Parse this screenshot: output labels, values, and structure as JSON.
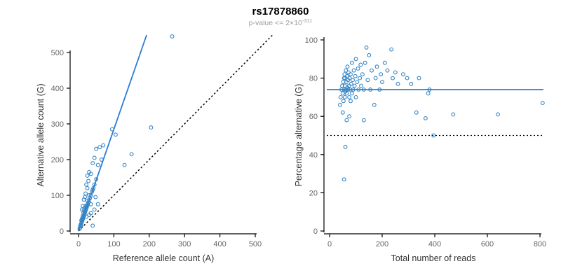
{
  "title": "rs17878860",
  "subtitle": {
    "prefix": "p-value <= 2",
    "times": "×",
    "base": "10",
    "exponent": "-311"
  },
  "colors": {
    "accent_line": "#2b7cd6",
    "point_stroke": "#3585c5",
    "dotted_line": "#000000",
    "axis_line": "#000000",
    "tick_text": "#666666",
    "axis_text": "#333333"
  },
  "chart_data": [
    {
      "type": "scatter",
      "xlabel": "Reference allele count (A)",
      "ylabel": "Alternative allele count (G)",
      "xlim": [
        0,
        500
      ],
      "ylim": [
        0,
        500
      ],
      "xticks": [
        0,
        100,
        200,
        300,
        400,
        500
      ],
      "yticks": [
        0,
        100,
        200,
        300,
        400,
        500
      ],
      "grid": false,
      "fit_line": {
        "slope": 2.85,
        "intercept": 0
      },
      "identity_line": {
        "slope": 1,
        "intercept": 0,
        "style": "dotted"
      },
      "points": [
        [
          3,
          6
        ],
        [
          4,
          10
        ],
        [
          5,
          14
        ],
        [
          6,
          18
        ],
        [
          7,
          15
        ],
        [
          8,
          22
        ],
        [
          8,
          30
        ],
        [
          9,
          25
        ],
        [
          10,
          28
        ],
        [
          10,
          35
        ],
        [
          11,
          30
        ],
        [
          12,
          34
        ],
        [
          12,
          42
        ],
        [
          13,
          36
        ],
        [
          14,
          40
        ],
        [
          14,
          50
        ],
        [
          15,
          42
        ],
        [
          15,
          58
        ],
        [
          16,
          45
        ],
        [
          17,
          48
        ],
        [
          18,
          52
        ],
        [
          18,
          65
        ],
        [
          19,
          55
        ],
        [
          20,
          58
        ],
        [
          20,
          70
        ],
        [
          21,
          60
        ],
        [
          22,
          40
        ],
        [
          22,
          63
        ],
        [
          23,
          66
        ],
        [
          24,
          70
        ],
        [
          25,
          72
        ],
        [
          25,
          85
        ],
        [
          26,
          75
        ],
        [
          28,
          80
        ],
        [
          30,
          45
        ],
        [
          30,
          86
        ],
        [
          30,
          100
        ],
        [
          32,
          92
        ],
        [
          35,
          50
        ],
        [
          35,
          75
        ],
        [
          35,
          100
        ],
        [
          38,
          110
        ],
        [
          40,
          15
        ],
        [
          40,
          115
        ],
        [
          42,
          120
        ],
        [
          45,
          60
        ],
        [
          45,
          130
        ],
        [
          48,
          95
        ],
        [
          50,
          145
        ],
        [
          55,
          75
        ],
        [
          10,
          60
        ],
        [
          12,
          70
        ],
        [
          15,
          88
        ],
        [
          18,
          95
        ],
        [
          20,
          105
        ],
        [
          22,
          130
        ],
        [
          25,
          120
        ],
        [
          25,
          155
        ],
        [
          28,
          140
        ],
        [
          30,
          165
        ],
        [
          35,
          160
        ],
        [
          40,
          190
        ],
        [
          45,
          205
        ],
        [
          50,
          230
        ],
        [
          55,
          185
        ],
        [
          60,
          235
        ],
        [
          65,
          200
        ],
        [
          70,
          240
        ],
        [
          95,
          285
        ],
        [
          105,
          270
        ],
        [
          130,
          185
        ],
        [
          150,
          215
        ],
        [
          205,
          290
        ],
        [
          265,
          545
        ]
      ]
    },
    {
      "type": "scatter",
      "xlabel": "Total number of reads",
      "ylabel": "Percentage alternative (G)",
      "xlim": [
        0,
        800
      ],
      "ylim": [
        0,
        100
      ],
      "xticks": [
        0,
        200,
        400,
        600,
        800
      ],
      "yticks": [
        0,
        20,
        40,
        60,
        80,
        100
      ],
      "grid": false,
      "hline_blue": 74,
      "hline_dotted": 50,
      "points": [
        [
          40,
          66
        ],
        [
          42,
          70
        ],
        [
          45,
          74
        ],
        [
          48,
          76
        ],
        [
          50,
          62
        ],
        [
          50,
          72
        ],
        [
          52,
          78
        ],
        [
          53,
          68
        ],
        [
          55,
          27
        ],
        [
          55,
          80
        ],
        [
          56,
          74
        ],
        [
          57,
          82
        ],
        [
          58,
          70
        ],
        [
          58,
          76
        ],
        [
          60,
          44
        ],
        [
          60,
          73
        ],
        [
          60,
          80
        ],
        [
          62,
          84
        ],
        [
          63,
          74
        ],
        [
          64,
          78
        ],
        [
          65,
          58
        ],
        [
          65,
          72
        ],
        [
          66,
          81
        ],
        [
          68,
          75
        ],
        [
          68,
          86
        ],
        [
          70,
          74
        ],
        [
          70,
          79
        ],
        [
          72,
          83
        ],
        [
          74,
          76
        ],
        [
          75,
          60
        ],
        [
          75,
          70
        ],
        [
          76,
          80
        ],
        [
          78,
          74
        ],
        [
          80,
          68
        ],
        [
          80,
          82
        ],
        [
          82,
          77
        ],
        [
          85,
          72
        ],
        [
          85,
          88
        ],
        [
          88,
          79
        ],
        [
          90,
          74
        ],
        [
          92,
          84
        ],
        [
          95,
          76
        ],
        [
          98,
          81
        ],
        [
          100,
          70
        ],
        [
          100,
          90
        ],
        [
          105,
          78
        ],
        [
          108,
          85
        ],
        [
          110,
          74
        ],
        [
          115,
          80
        ],
        [
          118,
          87
        ],
        [
          120,
          76
        ],
        [
          125,
          82
        ],
        [
          130,
          58
        ],
        [
          130,
          74
        ],
        [
          135,
          88
        ],
        [
          140,
          96
        ],
        [
          145,
          79
        ],
        [
          150,
          92
        ],
        [
          155,
          74
        ],
        [
          160,
          84
        ],
        [
          170,
          66
        ],
        [
          175,
          80
        ],
        [
          180,
          86
        ],
        [
          190,
          74
        ],
        [
          195,
          82
        ],
        [
          200,
          78
        ],
        [
          210,
          88
        ],
        [
          220,
          84
        ],
        [
          235,
          95
        ],
        [
          240,
          80
        ],
        [
          250,
          83
        ],
        [
          260,
          77
        ],
        [
          280,
          82
        ],
        [
          295,
          80
        ],
        [
          310,
          77
        ],
        [
          330,
          62
        ],
        [
          340,
          80
        ],
        [
          365,
          59
        ],
        [
          375,
          72
        ],
        [
          380,
          74
        ],
        [
          395,
          50
        ],
        [
          470,
          61
        ],
        [
          640,
          61
        ],
        [
          810,
          67
        ]
      ]
    }
  ]
}
